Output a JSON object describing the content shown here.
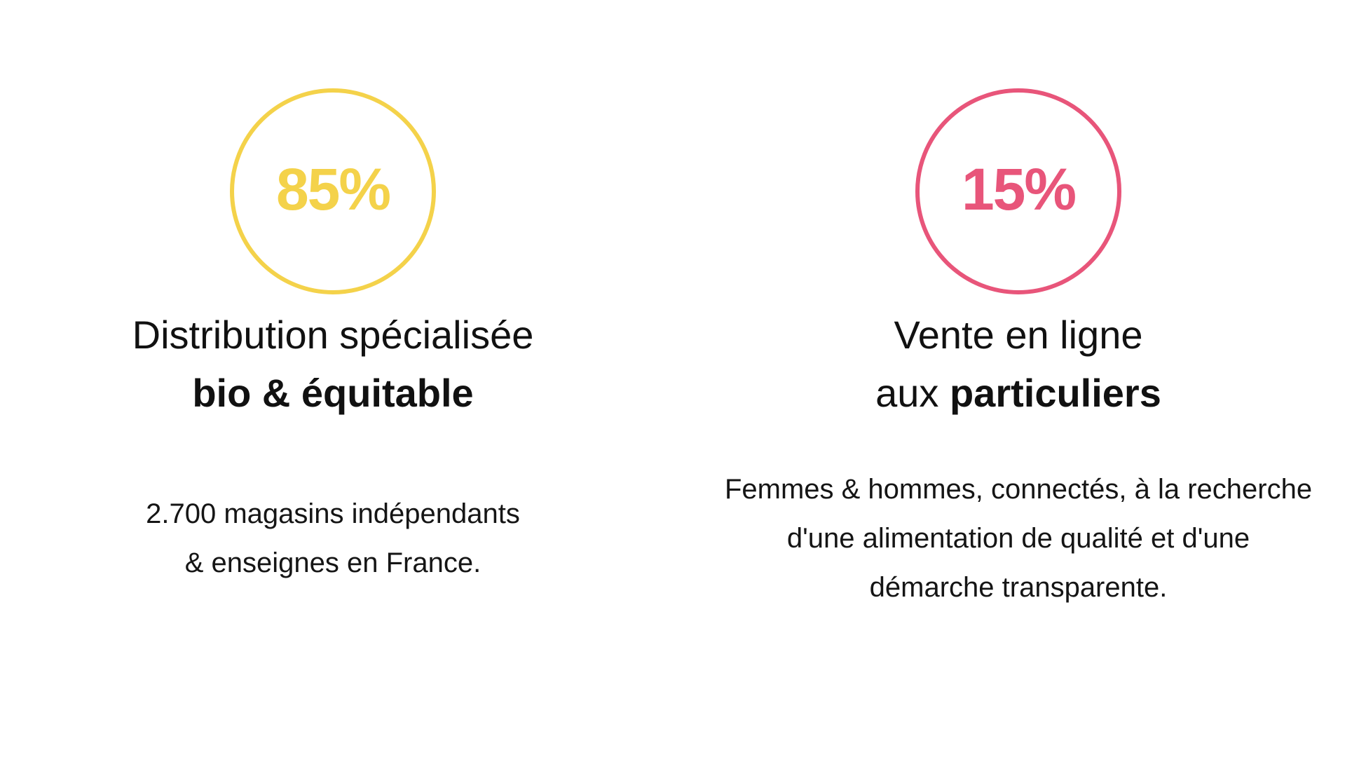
{
  "stats": [
    {
      "percent": "85%",
      "color": "#f4d24a",
      "title_line1": "Distribution spécialisée",
      "title_line2_prefix": "",
      "title_line2_bold": "bio & équitable",
      "description": [
        "2.700 magasins indépendants",
        "& enseignes en France."
      ]
    },
    {
      "percent": "15%",
      "color": "#e8557a",
      "title_line1": "Vente en ligne",
      "title_line2_prefix": "aux ",
      "title_line2_bold": "particuliers",
      "description": [
        "Femmes & hommes, connectés, à la recherche",
        "d'une alimentation de qualité et d'une",
        "démarche transparente."
      ]
    }
  ]
}
